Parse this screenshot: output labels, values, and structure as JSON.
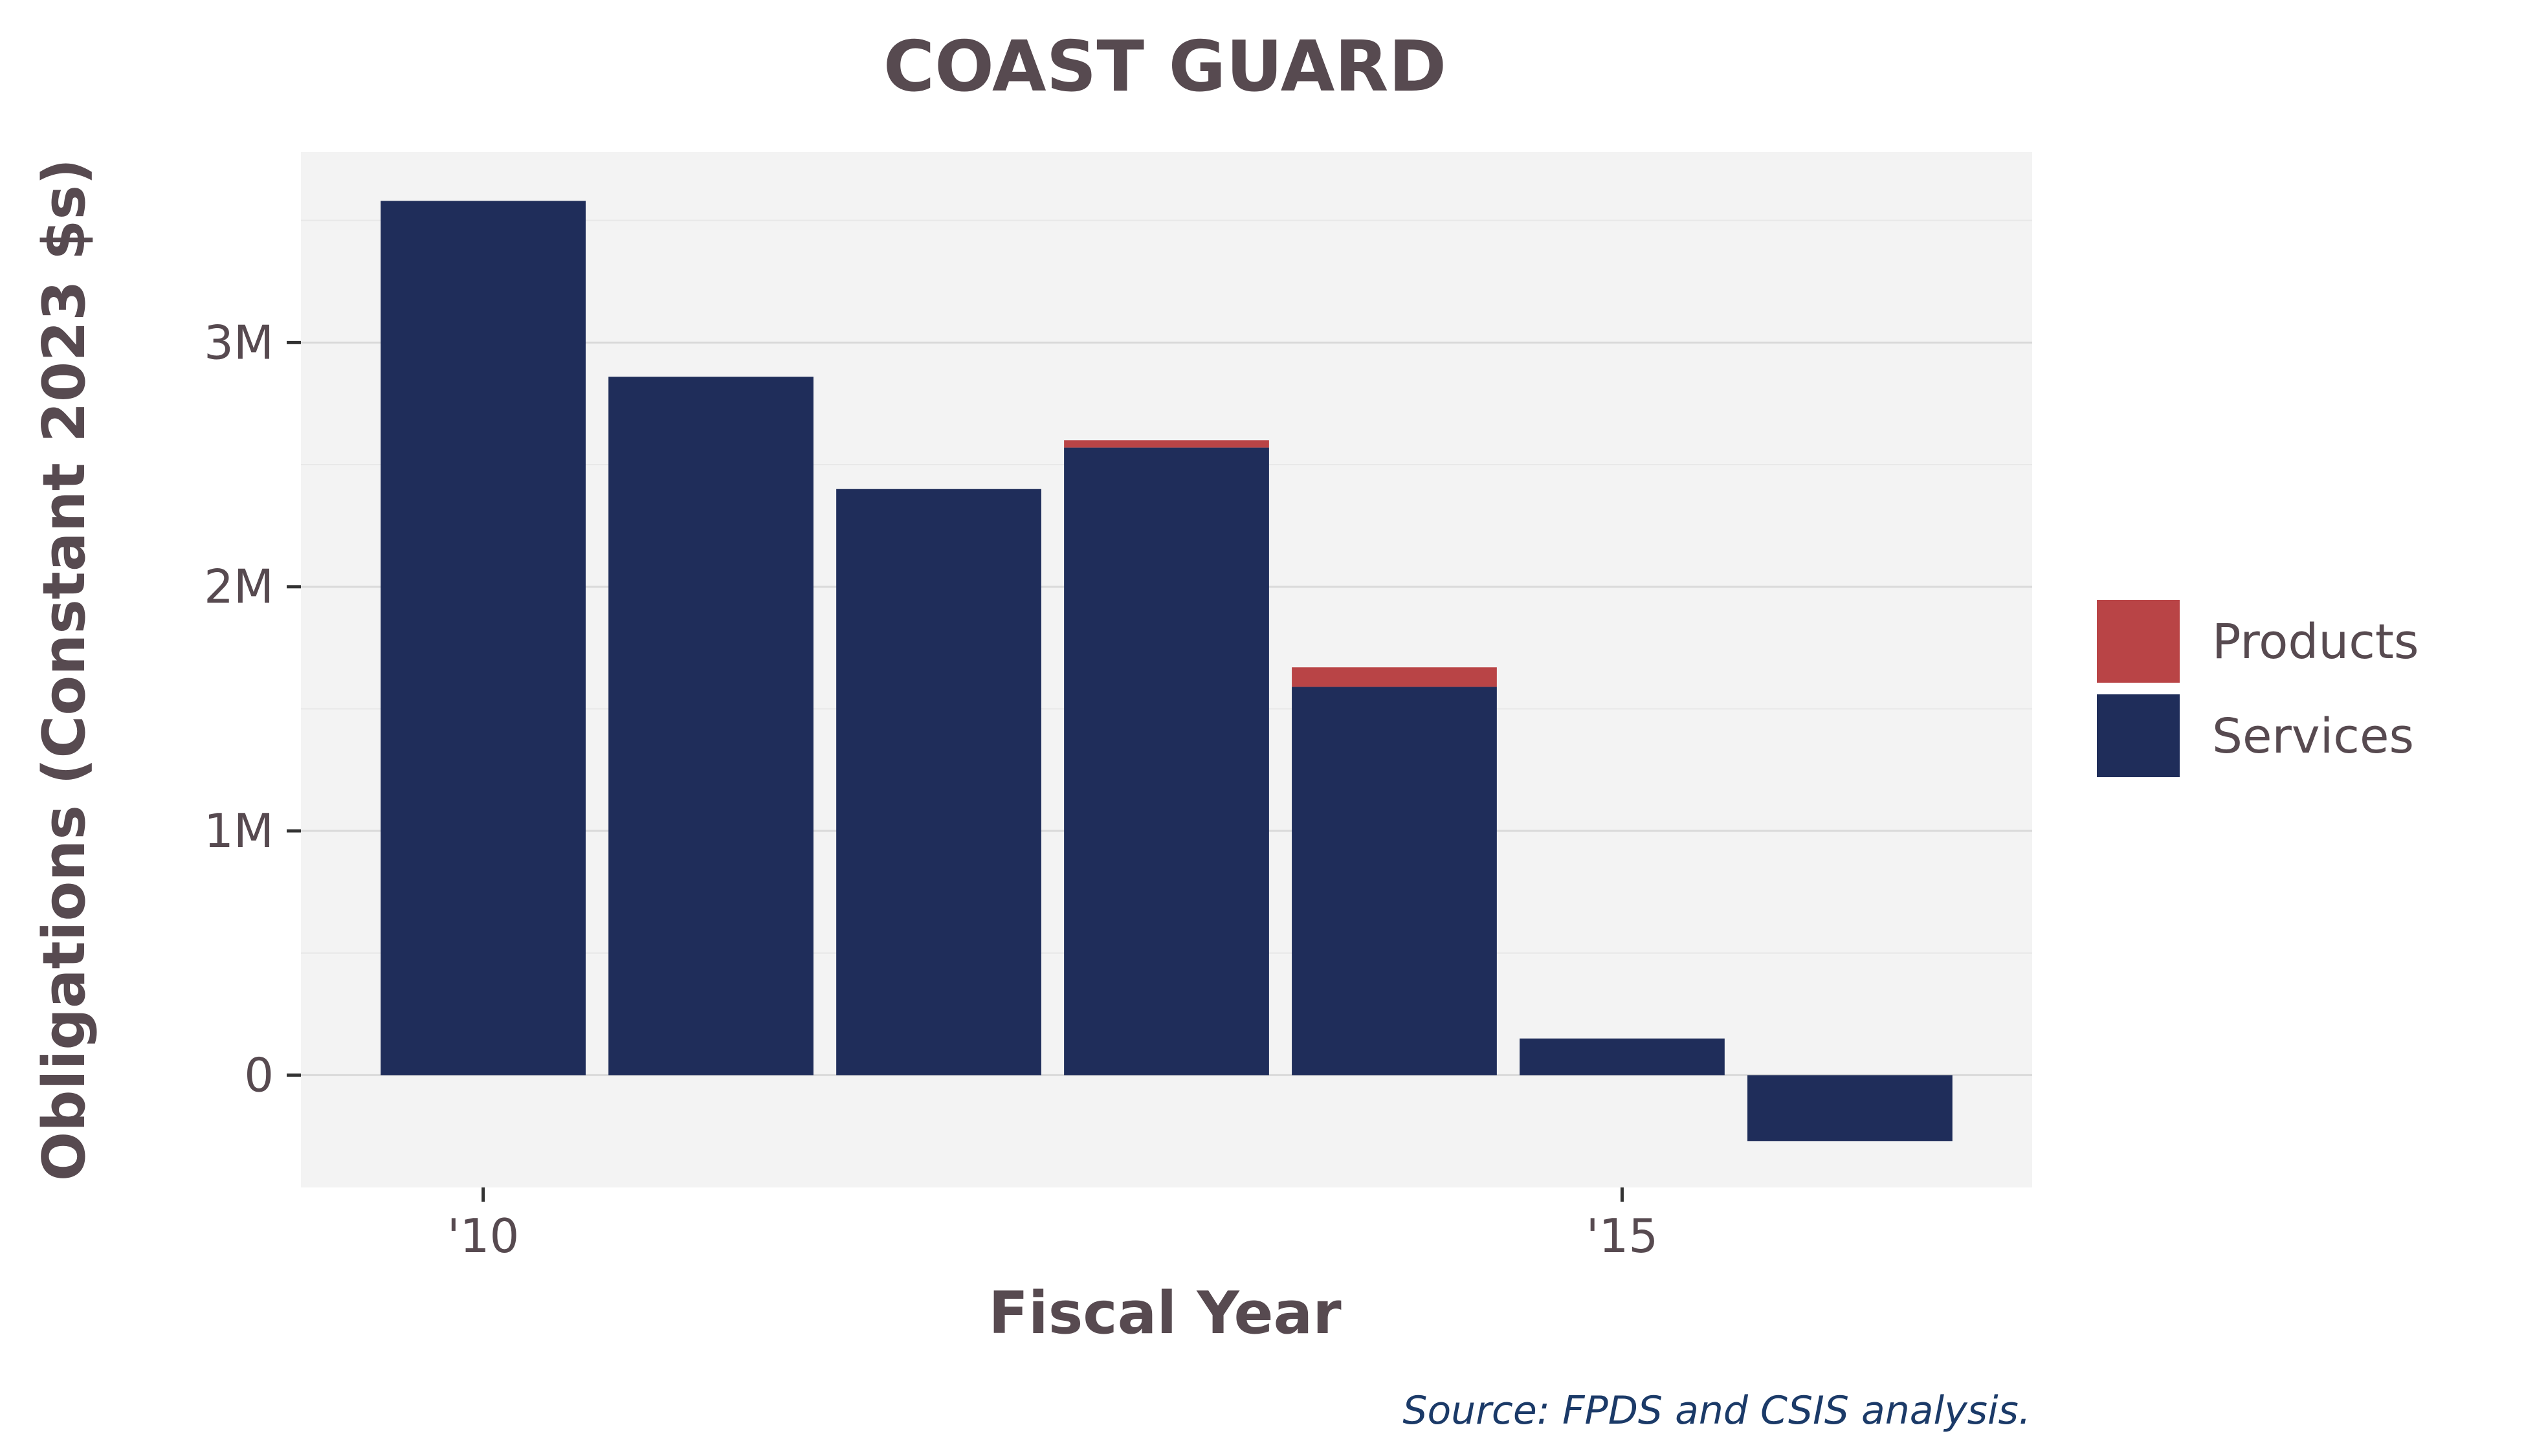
{
  "chart_data": {
    "type": "bar",
    "stacked": true,
    "title": "COAST GUARD",
    "xlabel": "Fiscal Year",
    "ylabel": "Obligations (Constant 2023 $s)",
    "caption": "Source: FPDS and CSIS analysis.",
    "x": [
      2010,
      2011,
      2012,
      2013,
      2014,
      2015,
      2016
    ],
    "x_ticks": [
      {
        "value": 2010,
        "label": "'10"
      },
      {
        "value": 2015,
        "label": "'15"
      }
    ],
    "y_ticks": [
      {
        "value": 0,
        "label": "0"
      },
      {
        "value": 1000000,
        "label": "1M"
      },
      {
        "value": 2000000,
        "label": "2M"
      },
      {
        "value": 3000000,
        "label": "3M"
      }
    ],
    "ylim": [
      -460000,
      3780000
    ],
    "xlim": [
      2009.2,
      2016.8
    ],
    "grid": true,
    "legend_position": "right",
    "series": [
      {
        "name": "Services",
        "color": "#1f2d5a",
        "values": [
          3580000,
          2860000,
          2400000,
          2570000,
          1590000,
          150000,
          -270000
        ]
      },
      {
        "name": "Products",
        "color": "#b94446",
        "values": [
          0,
          0,
          0,
          30000,
          80000,
          0,
          0
        ]
      }
    ],
    "legend_order": [
      "Products",
      "Services"
    ]
  },
  "colors": {
    "panel": "#f3f3f3",
    "grid_major": "#d9d9d9",
    "grid_minor": "#e8e8e8"
  }
}
